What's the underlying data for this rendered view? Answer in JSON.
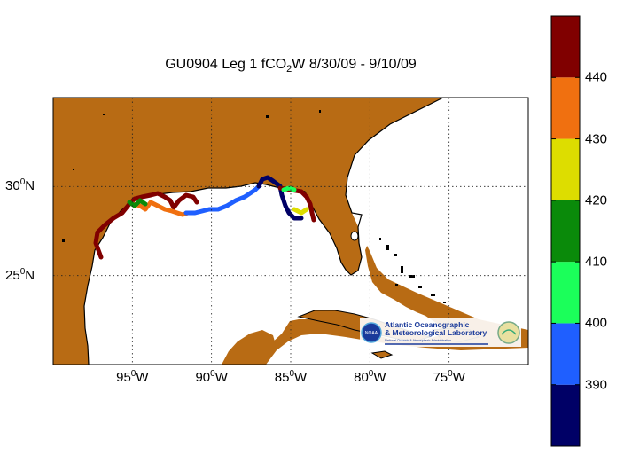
{
  "title": {
    "prefix": "GU0904 Leg 1 fCO",
    "sub": "2",
    "suffix": "W 8/30/09 - 9/10/09"
  },
  "map": {
    "region": "Gulf of Mexico",
    "lon_range": [
      -100,
      -70
    ],
    "lat_range": [
      20,
      35
    ],
    "lat_ticks": [
      {
        "value": 30,
        "num": "30",
        "deg": "0",
        "hem": "N"
      },
      {
        "value": 25,
        "num": "25",
        "deg": "0",
        "hem": "N"
      }
    ],
    "lon_ticks": [
      {
        "value": -95,
        "num": "95",
        "deg": "0",
        "hem": "W"
      },
      {
        "value": -90,
        "num": "90",
        "deg": "0",
        "hem": "W"
      },
      {
        "value": -85,
        "num": "85",
        "deg": "0",
        "hem": "W"
      },
      {
        "value": -80,
        "num": "80",
        "deg": "0",
        "hem": "W"
      },
      {
        "value": -75,
        "num": "75",
        "deg": "0",
        "hem": "W"
      }
    ],
    "grid": true,
    "land_color": "#b86b14",
    "water_color": "#ffffff"
  },
  "colorbar": {
    "range": [
      380,
      450
    ],
    "colors": [
      "#000066",
      "#1f5fff",
      "#1bff5a",
      "#0a8a0a",
      "#dddd00",
      "#f07010",
      "#800000"
    ],
    "labels": [
      "390",
      "400",
      "410",
      "420",
      "430",
      "440"
    ]
  },
  "logo": {
    "line1": "Atlantic Oceanographic",
    "line2": "& Meteorological Laboratory",
    "line3": "National Oceanic & Atmospheric Administration",
    "badge": "NOAA"
  }
}
